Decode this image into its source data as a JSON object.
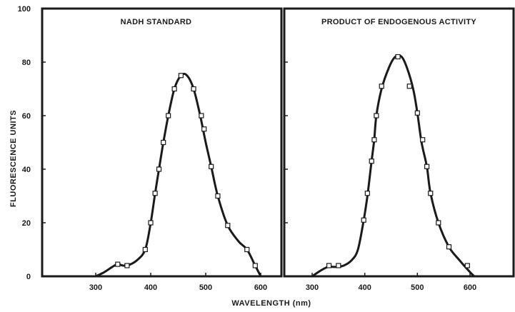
{
  "chart_data": {
    "type": "line",
    "ylabel": "FLUORESCENCE UNITS",
    "xlabel": "WAVELENGTH (nm)",
    "ylim": [
      0,
      100
    ],
    "yticks": [
      "0",
      "20",
      "40",
      "60",
      "80",
      "100"
    ],
    "xlim": [
      250,
      650
    ],
    "xticks": [
      "300",
      "400",
      "500",
      "600"
    ],
    "grid": false,
    "legend": "none",
    "line_color": "#1a1a1a",
    "panels": [
      {
        "title": "NADH STANDARD",
        "curve": [
          [
            300,
            0
          ],
          [
            315,
            1.5
          ],
          [
            330,
            3.5
          ],
          [
            340,
            4.5
          ],
          [
            350,
            4
          ],
          [
            360,
            4.2
          ],
          [
            375,
            6
          ],
          [
            390,
            10
          ],
          [
            400,
            20
          ],
          [
            408,
            31
          ],
          [
            415,
            40
          ],
          [
            423,
            50
          ],
          [
            432,
            60
          ],
          [
            443,
            70
          ],
          [
            455,
            75
          ],
          [
            466,
            75
          ],
          [
            478,
            70
          ],
          [
            490,
            60
          ],
          [
            500,
            50
          ],
          [
            510,
            41
          ],
          [
            522,
            30
          ],
          [
            540,
            19
          ],
          [
            560,
            13
          ],
          [
            575,
            10
          ],
          [
            590,
            4
          ],
          [
            600,
            0
          ]
        ],
        "points": [
          [
            340,
            4.5
          ],
          [
            357,
            4
          ],
          [
            390,
            10
          ],
          [
            400,
            20
          ],
          [
            408,
            31
          ],
          [
            415,
            40
          ],
          [
            423,
            50
          ],
          [
            432,
            60
          ],
          [
            443,
            70
          ],
          [
            455,
            75
          ],
          [
            478,
            70
          ],
          [
            492,
            60
          ],
          [
            497,
            55
          ],
          [
            510,
            41
          ],
          [
            522,
            30
          ],
          [
            540,
            19
          ],
          [
            575,
            10
          ],
          [
            590,
            4
          ]
        ]
      },
      {
        "title": "PRODUCT OF ENDOGENOUS ACTIVITY",
        "curve": [
          [
            300,
            0
          ],
          [
            315,
            2
          ],
          [
            330,
            3.5
          ],
          [
            345,
            3.5
          ],
          [
            360,
            4
          ],
          [
            375,
            6
          ],
          [
            387,
            10
          ],
          [
            398,
            21
          ],
          [
            405,
            30
          ],
          [
            413,
            43
          ],
          [
            418,
            51
          ],
          [
            422,
            60
          ],
          [
            432,
            70
          ],
          [
            446,
            78
          ],
          [
            458,
            82
          ],
          [
            470,
            82
          ],
          [
            480,
            78
          ],
          [
            492,
            70
          ],
          [
            500,
            61
          ],
          [
            508,
            50
          ],
          [
            518,
            41
          ],
          [
            525,
            31
          ],
          [
            540,
            20
          ],
          [
            560,
            11
          ],
          [
            580,
            6
          ],
          [
            598,
            2
          ],
          [
            608,
            0
          ]
        ],
        "points": [
          [
            332,
            4
          ],
          [
            350,
            4
          ],
          [
            398,
            21
          ],
          [
            405,
            31
          ],
          [
            413,
            43
          ],
          [
            418,
            51
          ],
          [
            422,
            60
          ],
          [
            432,
            71
          ],
          [
            463,
            82
          ],
          [
            485,
            71
          ],
          [
            500,
            61
          ],
          [
            510,
            51
          ],
          [
            518,
            41
          ],
          [
            525,
            31
          ],
          [
            540,
            20
          ],
          [
            560,
            11
          ],
          [
            595,
            4
          ]
        ]
      }
    ]
  }
}
